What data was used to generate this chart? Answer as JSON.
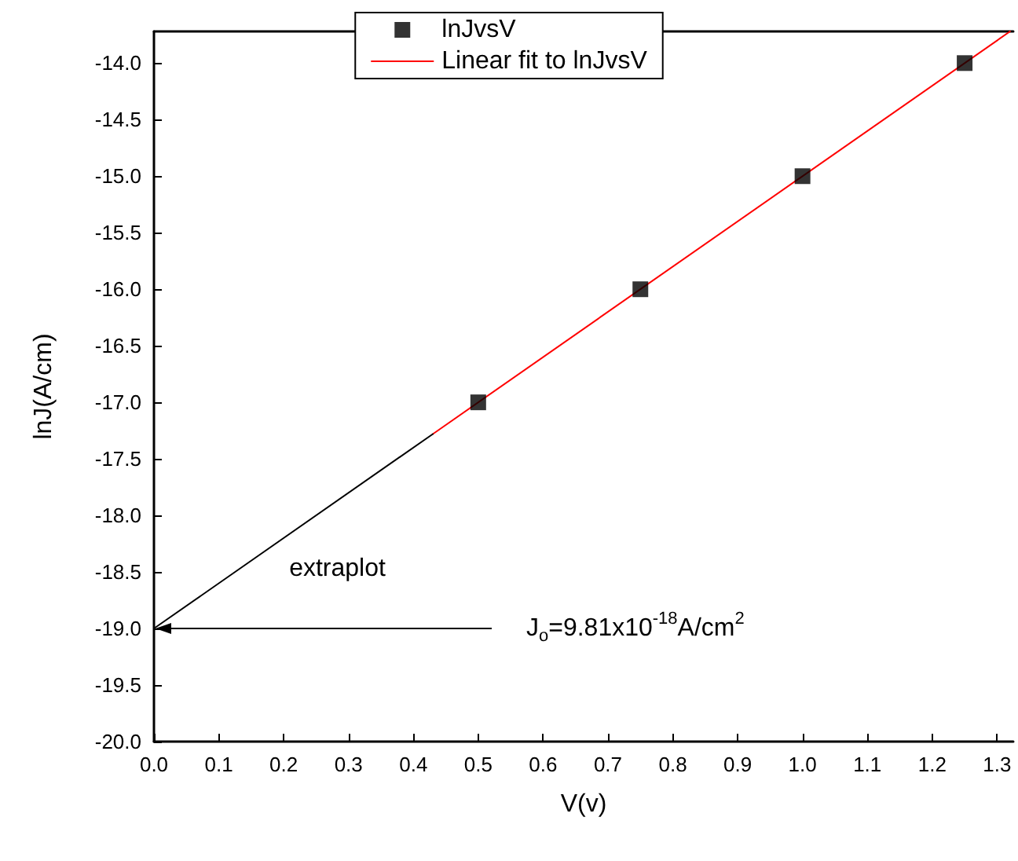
{
  "chart_data": {
    "type": "scatter",
    "xlabel": "V(v)",
    "ylabel": "lnJ(A/cm)",
    "xlim": [
      0,
      1.325
    ],
    "xticks": [
      {
        "value": 0,
        "label": "0.0"
      },
      0.1,
      0.2,
      0.3,
      0.4,
      0.5,
      0.6,
      0.7,
      0.8,
      0.9,
      {
        "value": 1,
        "label": "1.0"
      },
      1.1,
      1.2,
      1.3
    ],
    "ylim": [
      -20,
      -13.72
    ],
    "yticks": [
      {
        "value": -20,
        "label": "-20.0"
      },
      -19.5,
      {
        "value": -19,
        "label": "-19.0"
      },
      -18.5,
      {
        "value": -18,
        "label": "-18.0"
      },
      -17.5,
      {
        "value": -17,
        "label": "-17.0"
      },
      -16.5,
      {
        "value": -16,
        "label": "-16.0"
      },
      -15.5,
      {
        "value": -15,
        "label": "-15.0"
      },
      -14.5,
      {
        "value": -14,
        "label": "-14.0"
      }
    ],
    "grid": false,
    "legend": "top",
    "series": [
      {
        "name": "lnJvsV",
        "marker": "square",
        "color": "#000000",
        "x": [
          0.5,
          0.75,
          1.0,
          1.25
        ],
        "values": [
          -17,
          -16,
          -15,
          -14
        ]
      },
      {
        "name": "Linear fit to lnJvsV",
        "type": "line",
        "marker": "none",
        "color": "#ff0000",
        "x": [
          0.43,
          1.32
        ],
        "values": [
          -17.28,
          -13.72
        ]
      },
      {
        "type": "line",
        "marker": "none",
        "color": "#000000",
        "x": [
          0,
          0.43
        ],
        "values": [
          -19,
          -17.28
        ]
      }
    ],
    "annotations": [
      "extraplot",
      "J$_{o}$=9.81x10$^{-18}$A/cm$^{2}$"
    ]
  }
}
